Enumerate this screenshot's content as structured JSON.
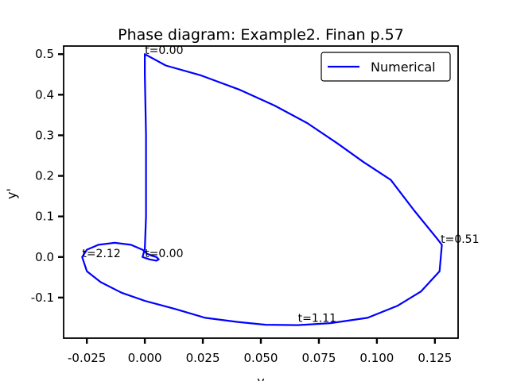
{
  "chart_data": {
    "type": "line",
    "title": "Phase diagram: Example2. Finan p.57",
    "xlabel": "y",
    "ylabel": "y'",
    "xlim": [
      -0.035,
      0.135
    ],
    "ylim": [
      -0.2,
      0.52
    ],
    "xticks": [
      -0.025,
      0.0,
      0.025,
      0.05,
      0.075,
      0.1,
      0.125
    ],
    "xtick_labels": [
      "-0.025",
      "0.000",
      "0.025",
      "0.050",
      "0.075",
      "0.100",
      "0.125"
    ],
    "yticks": [
      -0.1,
      0.0,
      0.1,
      0.2,
      0.3,
      0.4,
      0.5
    ],
    "ytick_labels": [
      "-0.1",
      "0.0",
      "0.1",
      "0.2",
      "0.3",
      "0.4",
      "0.5"
    ],
    "grid": false,
    "legend_position": "top-right",
    "series": [
      {
        "name": "Numerical",
        "color": "#0000ff",
        "x": [
          0.0,
          0.009,
          0.024,
          0.041,
          0.056,
          0.07,
          0.083,
          0.094,
          0.106,
          0.116,
          0.126,
          0.128,
          0.127,
          0.119,
          0.109,
          0.096,
          0.08,
          0.066,
          0.052,
          0.04,
          0.026,
          0.013,
          0.0,
          -0.01,
          -0.019,
          -0.025,
          -0.027,
          -0.025,
          -0.02,
          -0.013,
          -0.006,
          -0.001,
          0.001,
          0.003,
          0.005,
          0.006,
          0.005,
          0.002,
          -0.001,
          0.0,
          0.0005,
          0.0005,
          0.0,
          0.0
        ],
        "y": [
          0.5,
          0.472,
          0.448,
          0.412,
          0.373,
          0.33,
          0.28,
          0.235,
          0.19,
          0.115,
          0.045,
          0.03,
          -0.035,
          -0.085,
          -0.12,
          -0.15,
          -0.163,
          -0.168,
          -0.167,
          -0.16,
          -0.15,
          -0.128,
          -0.108,
          -0.088,
          -0.062,
          -0.035,
          0.0,
          0.018,
          0.03,
          0.035,
          0.03,
          0.018,
          0.008,
          0.003,
          0.0,
          -0.006,
          -0.009,
          -0.006,
          0.0,
          0.02,
          0.1,
          0.3,
          0.45,
          0.5
        ]
      }
    ],
    "annotations": [
      {
        "text": "t=0.00",
        "x": 0.0,
        "y": 0.5
      },
      {
        "text": "t=0.00",
        "x": 0.0,
        "y": 0.0
      },
      {
        "text": "t=0.51",
        "x": 0.1275,
        "y": 0.035
      },
      {
        "text": "t=1.11",
        "x": 0.066,
        "y": -0.16
      },
      {
        "text": "t=2.12",
        "x": -0.027,
        "y": 0.0
      }
    ]
  }
}
